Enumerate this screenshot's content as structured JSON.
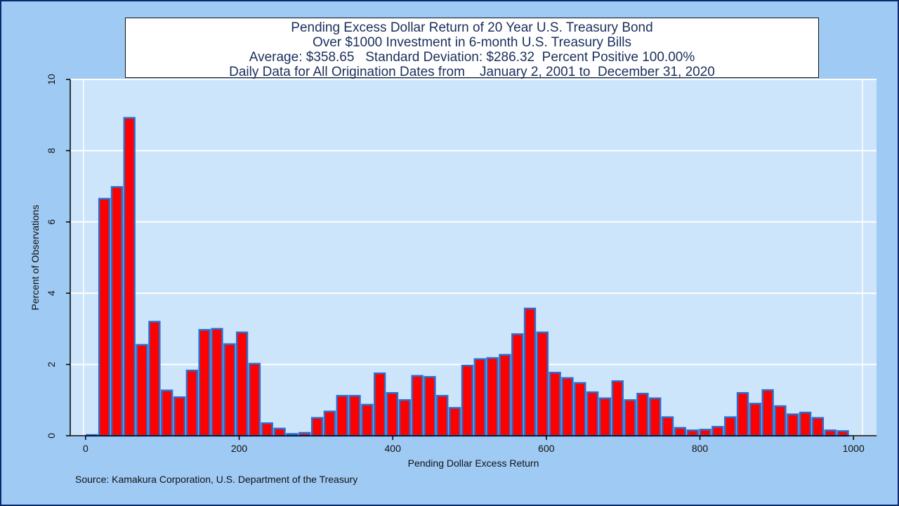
{
  "title_lines": [
    "Pending Excess Dollar Return of 20 Year U.S. Treasury Bond",
    "Over $1000 Investment in 6-month U.S. Treasury Bills",
    "Average: $358.65   Standard Deviation: $286.32  Percent Positive 100.00%",
    "Daily Data for All Origination Dates from    January 2, 2001 to  December 31, 2020"
  ],
  "source": "Source: Kamakura Corporation, U.S. Department of the Treasury",
  "colors": {
    "bar_fill": "#ff0000",
    "bar_edge": "#2a6fcf",
    "plot_bg": "#cde5fb",
    "grid": "#ffffff"
  },
  "chart_data": {
    "type": "bar",
    "title": "Pending Excess Dollar Return of 20 Year U.S. Treasury Bond",
    "xlabel": "Pending Dollar Excess Return",
    "ylabel": "Percent of Observations",
    "xlim": [
      -20,
      1030
    ],
    "ylim": [
      0,
      10
    ],
    "xticks": [
      0,
      200,
      400,
      600,
      800,
      1000
    ],
    "yticks": [
      0,
      2,
      4,
      6,
      8,
      10
    ],
    "grid": true,
    "bin_width": 16.3,
    "bin_start": 0,
    "values": [
      0.02,
      6.65,
      6.98,
      8.92,
      2.55,
      3.2,
      1.27,
      1.08,
      1.83,
      2.97,
      3.0,
      2.57,
      2.9,
      2.02,
      0.35,
      0.2,
      0.05,
      0.08,
      0.5,
      0.68,
      1.12,
      1.12,
      0.87,
      1.75,
      1.2,
      1.0,
      1.68,
      1.65,
      1.12,
      0.78,
      1.97,
      2.15,
      2.18,
      2.27,
      2.85,
      3.57,
      2.9,
      1.77,
      1.62,
      1.48,
      1.22,
      1.05,
      1.53,
      1.0,
      1.18,
      1.05,
      0.52,
      0.22,
      0.15,
      0.17,
      0.25,
      0.52,
      1.2,
      0.9,
      1.28,
      0.83,
      0.6,
      0.65,
      0.5,
      0.15,
      0.13
    ]
  }
}
